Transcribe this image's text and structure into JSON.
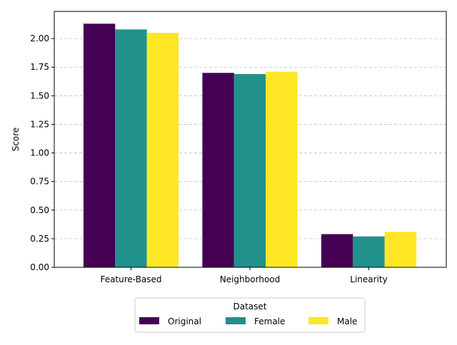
{
  "chart_data": {
    "type": "bar",
    "title": "",
    "xlabel": "",
    "ylabel": "Score",
    "categories": [
      "Feature-Based",
      "Neighborhood",
      "Linearity"
    ],
    "series": [
      {
        "name": "Original",
        "values": [
          2.13,
          1.7,
          0.29
        ],
        "color": "#440154"
      },
      {
        "name": "Female",
        "values": [
          2.08,
          1.69,
          0.27
        ],
        "color": "#21918c"
      },
      {
        "name": "Male",
        "values": [
          2.05,
          1.71,
          0.31
        ],
        "color": "#fde725"
      }
    ],
    "ylim": [
      0,
      2.2375
    ],
    "yticks": [
      "0.00",
      "0.25",
      "0.50",
      "0.75",
      "1.00",
      "1.25",
      "1.50",
      "1.75",
      "2.00"
    ],
    "grid": "y-dashed",
    "legend": {
      "title": "Dataset",
      "placement": "bottom-center"
    }
  }
}
